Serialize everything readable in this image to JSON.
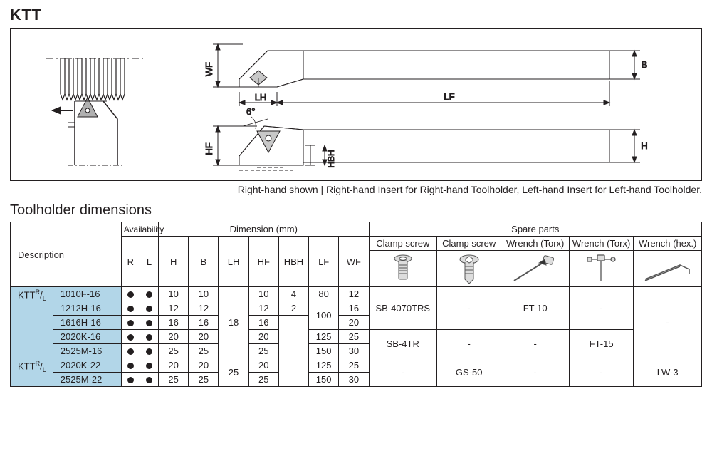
{
  "title": "KTT",
  "caption": "Right-hand shown | Right-hand Insert for Right-hand Toolholder, Left-hand Insert for Left-hand Toolholder.",
  "subhead": "Toolholder dimensions",
  "diagram_labels": {
    "wf": "WF",
    "b": "B",
    "lh": "LH",
    "lf": "LF",
    "angle": "6°",
    "hf": "HF",
    "hbh": "HBH",
    "h": "H"
  },
  "headers": {
    "description": "Description",
    "availability": "Availability",
    "dimension": "Dimension (mm)",
    "spareparts": "Spare parts",
    "r": "R",
    "l": "L",
    "hcol": "H",
    "bcol": "B",
    "lhcol": "LH",
    "hfcol": "HF",
    "hbhcol": "HBH",
    "lfcol": "LF",
    "wfcol": "WF",
    "clamp1": "Clamp screw",
    "clamp2": "Clamp screw",
    "wrench1": "Wrench (Torx)",
    "wrench2": "Wrench (Torx)",
    "wrench3": "Wrench (hex.)"
  },
  "group1": {
    "prefix": "KTTR/L",
    "items": [
      "1010F-16",
      "1212H-16",
      "1616H-16",
      "2020K-16",
      "2525M-16"
    ]
  },
  "group2": {
    "prefix": "KTTR/L",
    "items": [
      "2020K-22",
      "2525M-22"
    ]
  },
  "lh1": "18",
  "lh2": "25",
  "rows": [
    {
      "h": "10",
      "b": "10",
      "hf": "10",
      "hbh": "4",
      "lf": "80",
      "wf": "12"
    },
    {
      "h": "12",
      "b": "12",
      "hf": "12",
      "hbh": "2",
      "lf_span": "100",
      "wf": "16"
    },
    {
      "h": "16",
      "b": "16",
      "hf": "16",
      "wf": "20"
    },
    {
      "h": "20",
      "b": "20",
      "hf": "20",
      "lf": "125",
      "wf": "25"
    },
    {
      "h": "25",
      "b": "25",
      "hf": "25",
      "lf": "150",
      "wf": "30"
    },
    {
      "h": "20",
      "b": "20",
      "hf": "20",
      "lf": "125",
      "wf": "25"
    },
    {
      "h": "25",
      "b": "25",
      "hf": "25",
      "lf": "150",
      "wf": "30"
    }
  ],
  "spare": {
    "sb4070": "SB-4070TRS",
    "sb4tr": "SB-4TR",
    "gs50": "GS-50",
    "ft10": "FT-10",
    "ft15": "FT-15",
    "lw3": "LW-3",
    "dash": "-"
  },
  "colors": {
    "blue": "#b2d6e8",
    "fg": "#231f20",
    "iconbg": "#e8e8e8"
  }
}
